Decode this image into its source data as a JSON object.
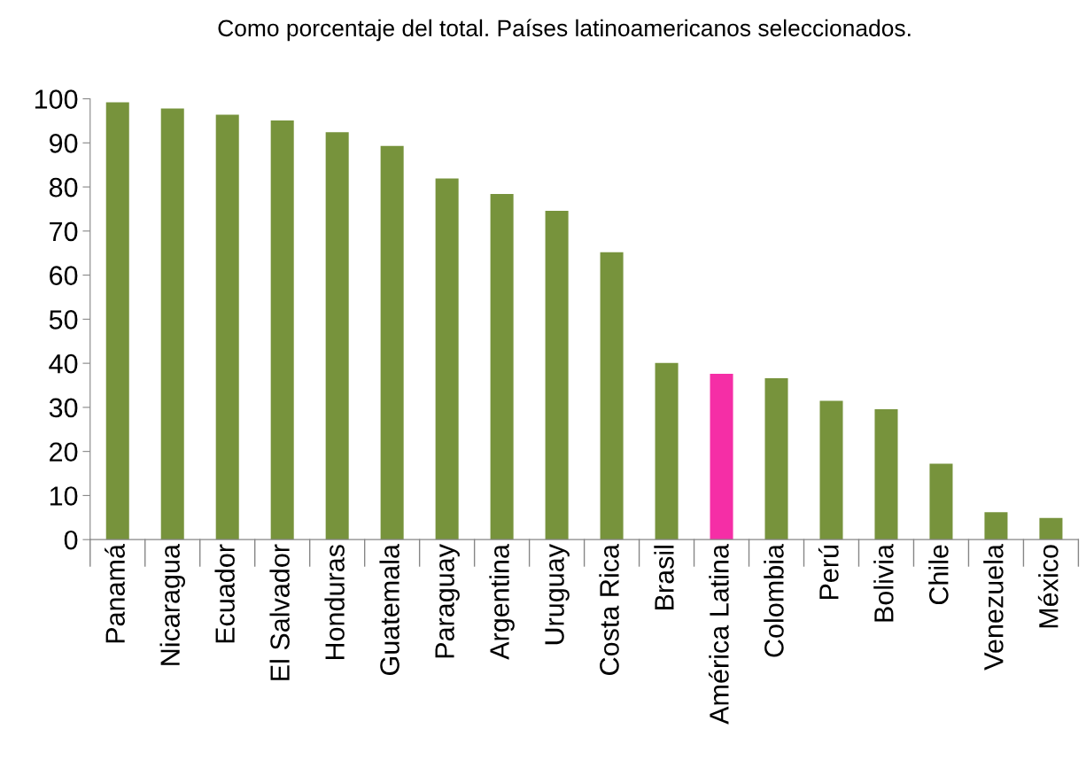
{
  "chart_data": {
    "type": "bar",
    "title": "Como porcentaje del total. Países latinoamericanos seleccionados.",
    "categories": [
      "Panamá",
      "Nicaragua",
      "Ecuador",
      "El Salvador",
      "Honduras",
      "Guatemala",
      "Paraguay",
      "Argentina",
      "Uruguay",
      "Costa Rica",
      "Brasil",
      "América Latina",
      "Colombia",
      "Perú",
      "Bolivia",
      "Chile",
      "Venezuela",
      "México"
    ],
    "values": [
      99.2,
      97.8,
      96.4,
      95.1,
      92.4,
      89.3,
      81.9,
      78.4,
      74.6,
      65.2,
      40.1,
      37.6,
      36.6,
      31.5,
      29.6,
      17.2,
      6.2,
      4.9
    ],
    "colors": [
      "#77933c",
      "#77933c",
      "#77933c",
      "#77933c",
      "#77933c",
      "#77933c",
      "#77933c",
      "#77933c",
      "#77933c",
      "#77933c",
      "#77933c",
      "#f52ea6",
      "#77933c",
      "#77933c",
      "#77933c",
      "#77933c",
      "#77933c",
      "#77933c"
    ],
    "ylim": [
      0,
      100
    ],
    "yticks": [
      0,
      10,
      20,
      30,
      40,
      50,
      60,
      70,
      80,
      90,
      100
    ],
    "grid": false,
    "legend": false
  }
}
